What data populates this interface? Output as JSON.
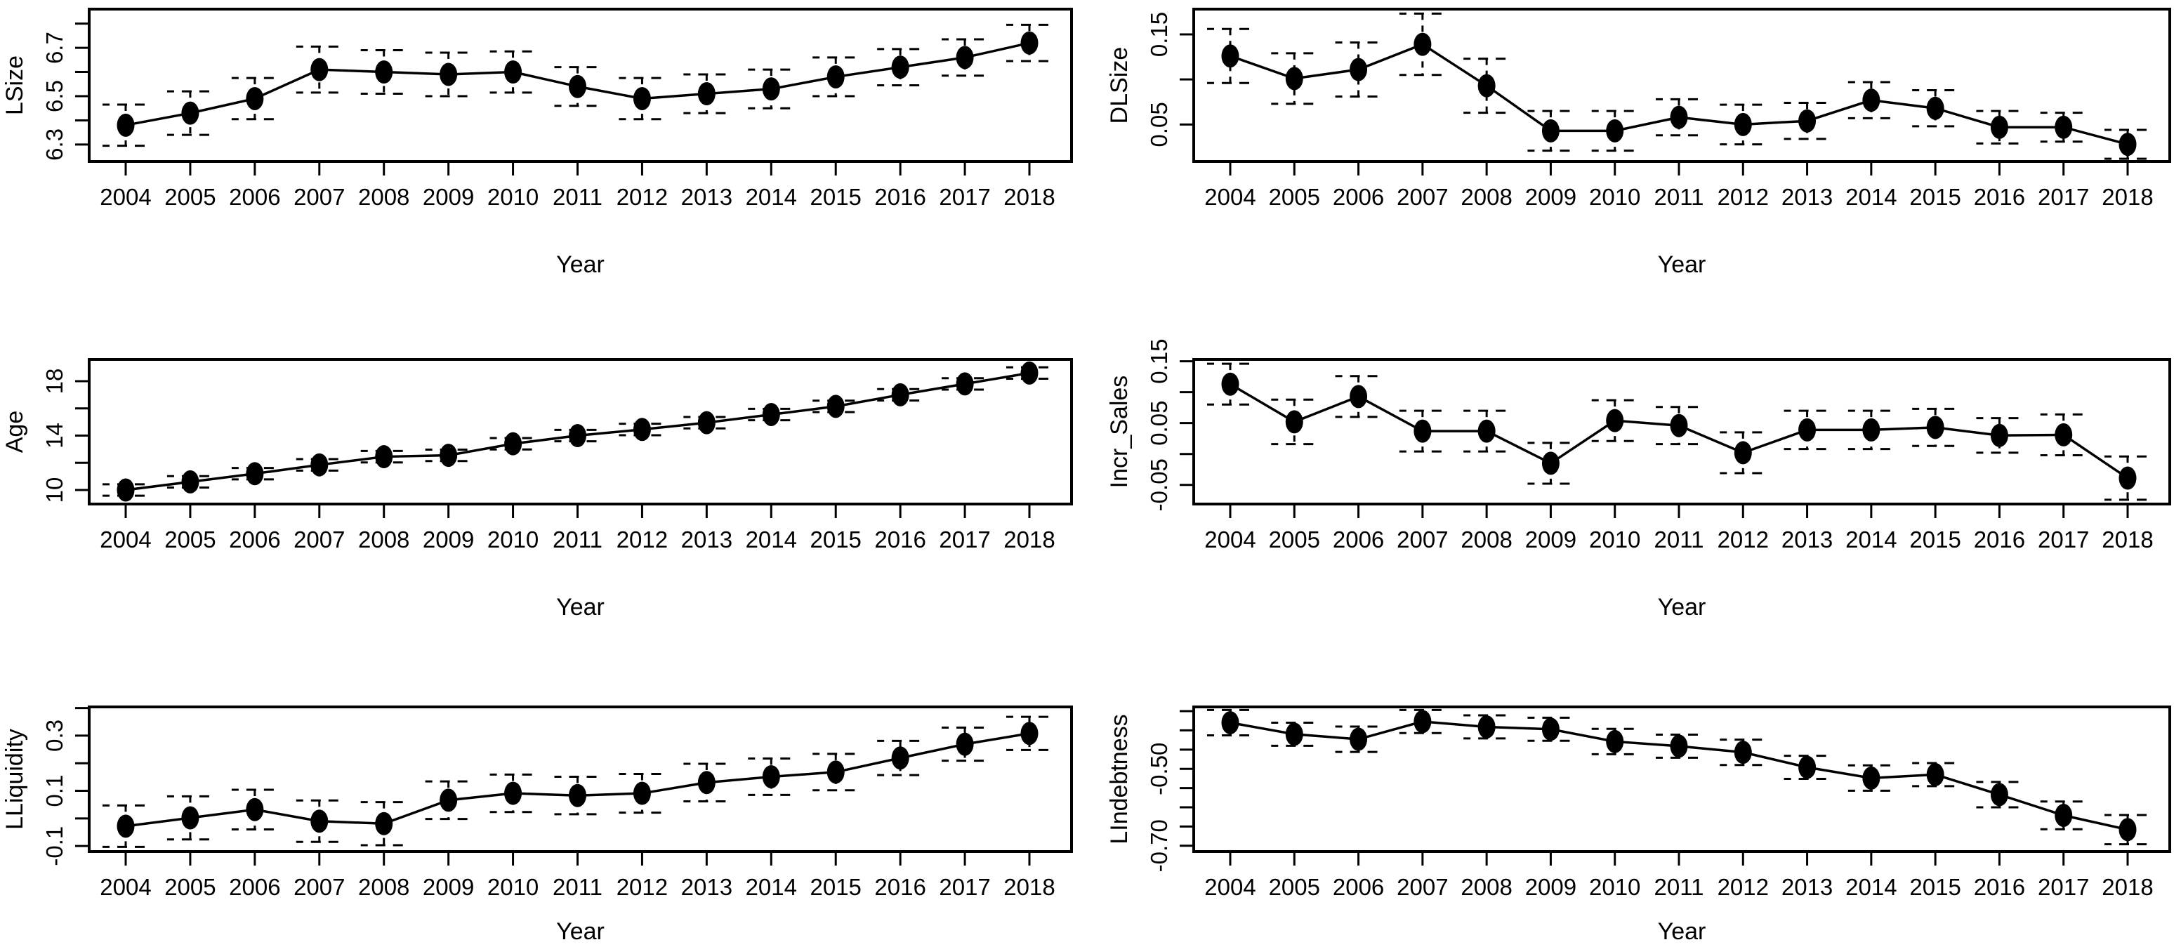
{
  "figure": {
    "background": "#ffffff",
    "axis_color": "#000000",
    "point_color": "#000000",
    "line_color": "#000000",
    "xlabel": "Year",
    "years": [
      2004,
      2005,
      2006,
      2007,
      2008,
      2009,
      2010,
      2011,
      2012,
      2013,
      2014,
      2015,
      2016,
      2017,
      2018
    ]
  },
  "chart_data": [
    {
      "type": "line",
      "title": "LSize",
      "ylabel": "LSize",
      "xlabel": "Year",
      "grid": false,
      "legend": null,
      "marker": "filled-circle",
      "error_style": "dashed-whiskers",
      "x": [
        2004,
        2005,
        2006,
        2007,
        2008,
        2009,
        2010,
        2011,
        2012,
        2013,
        2014,
        2015,
        2016,
        2017,
        2018
      ],
      "values": [
        6.38,
        6.43,
        6.49,
        6.61,
        6.6,
        6.59,
        6.6,
        6.54,
        6.49,
        6.51,
        6.53,
        6.58,
        6.62,
        6.66,
        6.72
      ],
      "ci": [
        0.085,
        0.09,
        0.085,
        0.095,
        0.09,
        0.09,
        0.085,
        0.08,
        0.085,
        0.08,
        0.08,
        0.08,
        0.075,
        0.075,
        0.075
      ],
      "ylim": [
        6.23,
        6.86
      ],
      "yticks": [
        6.3,
        6.4,
        6.5,
        6.6,
        6.7,
        6.8
      ],
      "labeled_yticks": [
        {
          "v": 6.3,
          "label": "6.3"
        },
        {
          "v": 6.5,
          "label": "6.5"
        },
        {
          "v": 6.7,
          "label": "6.7"
        }
      ]
    },
    {
      "type": "line",
      "title": "DLSize",
      "ylabel": "DLSize",
      "xlabel": "Year",
      "grid": false,
      "legend": null,
      "marker": "filled-circle",
      "error_style": "dashed-whiskers",
      "x": [
        2004,
        2005,
        2006,
        2007,
        2008,
        2009,
        2010,
        2011,
        2012,
        2013,
        2014,
        2015,
        2016,
        2017,
        2018
      ],
      "values": [
        0.126,
        0.101,
        0.111,
        0.139,
        0.093,
        0.043,
        0.043,
        0.058,
        0.05,
        0.054,
        0.077,
        0.068,
        0.047,
        0.047,
        0.028
      ],
      "ci": [
        0.03,
        0.028,
        0.03,
        0.034,
        0.03,
        0.022,
        0.022,
        0.02,
        0.022,
        0.02,
        0.02,
        0.02,
        0.018,
        0.016,
        0.016
      ],
      "ylim": [
        0.009,
        0.178
      ],
      "yticks": [
        0.05,
        0.1,
        0.15
      ],
      "labeled_yticks": [
        {
          "v": 0.05,
          "label": "0.05"
        },
        {
          "v": 0.15,
          "label": "0.15"
        }
      ]
    },
    {
      "type": "line",
      "title": "Age",
      "ylabel": "Age",
      "xlabel": "Year",
      "grid": false,
      "legend": null,
      "marker": "filled-circle",
      "error_style": "dashed-whiskers",
      "x": [
        2004,
        2005,
        2006,
        2007,
        2008,
        2009,
        2010,
        2011,
        2012,
        2013,
        2014,
        2015,
        2016,
        2017,
        2018
      ],
      "values": [
        10.0,
        10.6,
        11.2,
        11.85,
        12.45,
        12.55,
        13.4,
        14.0,
        14.45,
        14.95,
        15.55,
        16.15,
        17.0,
        17.8,
        18.6
      ],
      "ci": [
        0.42,
        0.42,
        0.42,
        0.42,
        0.42,
        0.42,
        0.42,
        0.42,
        0.42,
        0.42,
        0.42,
        0.42,
        0.42,
        0.42,
        0.42
      ],
      "ylim": [
        8.97,
        19.6
      ],
      "yticks": [
        10,
        12,
        14,
        16,
        18
      ],
      "labeled_yticks": [
        {
          "v": 10,
          "label": "10"
        },
        {
          "v": 14,
          "label": "14"
        },
        {
          "v": 18,
          "label": "18"
        }
      ]
    },
    {
      "type": "line",
      "title": "Incr_Sales",
      "ylabel": "Incr_Sales",
      "xlabel": "Year",
      "grid": false,
      "legend": null,
      "marker": "filled-circle",
      "error_style": "dashed-whiskers",
      "x": [
        2004,
        2005,
        2006,
        2007,
        2008,
        2009,
        2010,
        2011,
        2012,
        2013,
        2014,
        2015,
        2016,
        2017,
        2018
      ],
      "values": [
        0.113,
        0.052,
        0.093,
        0.037,
        0.037,
        -0.015,
        0.054,
        0.046,
        0.002,
        0.039,
        0.039,
        0.043,
        0.03,
        0.031,
        -0.039
      ],
      "ci": [
        0.033,
        0.036,
        0.033,
        0.033,
        0.033,
        0.033,
        0.033,
        0.03,
        0.033,
        0.031,
        0.031,
        0.03,
        0.028,
        0.033,
        0.035
      ],
      "ylim": [
        -0.081,
        0.153
      ],
      "yticks": [
        -0.05,
        0.0,
        0.05,
        0.1,
        0.15
      ],
      "labeled_yticks": [
        {
          "v": -0.05,
          "label": "-0.05"
        },
        {
          "v": 0.05,
          "label": "0.05"
        },
        {
          "v": 0.15,
          "label": "0.15"
        }
      ]
    },
    {
      "type": "line",
      "title": "LLiquidity",
      "ylabel": "LLiquidity",
      "xlabel": "Year",
      "grid": false,
      "legend": null,
      "marker": "filled-circle",
      "error_style": "dashed-whiskers",
      "x": [
        2004,
        2005,
        2006,
        2007,
        2008,
        2009,
        2010,
        2011,
        2012,
        2013,
        2014,
        2015,
        2016,
        2017,
        2018
      ],
      "values": [
        -0.028,
        0.002,
        0.032,
        -0.01,
        -0.019,
        0.066,
        0.091,
        0.083,
        0.091,
        0.13,
        0.151,
        0.168,
        0.219,
        0.269,
        0.308
      ],
      "ci": [
        0.075,
        0.078,
        0.072,
        0.075,
        0.078,
        0.068,
        0.068,
        0.068,
        0.07,
        0.068,
        0.066,
        0.066,
        0.062,
        0.06,
        0.06
      ],
      "ylim": [
        -0.12,
        0.404
      ],
      "yticks": [
        -0.1,
        0.0,
        0.1,
        0.2,
        0.3,
        0.4
      ],
      "labeled_yticks": [
        {
          "v": -0.1,
          "label": "-0.1"
        },
        {
          "v": 0.1,
          "label": "0.1"
        },
        {
          "v": 0.3,
          "label": "0.3"
        }
      ]
    },
    {
      "type": "line",
      "title": "LIndebtness",
      "ylabel": "LIndebtness",
      "xlabel": "Year",
      "grid": false,
      "legend": null,
      "marker": "filled-circle",
      "error_style": "dashed-whiskers",
      "x": [
        2004,
        2005,
        2006,
        2007,
        2008,
        2009,
        2010,
        2011,
        2012,
        2013,
        2014,
        2015,
        2016,
        2017,
        2018
      ],
      "values": [
        -0.38,
        -0.41,
        -0.423,
        -0.377,
        -0.391,
        -0.397,
        -0.429,
        -0.441,
        -0.457,
        -0.496,
        -0.524,
        -0.515,
        -0.567,
        -0.621,
        -0.658
      ],
      "ci": [
        0.033,
        0.03,
        0.033,
        0.03,
        0.03,
        0.03,
        0.033,
        0.03,
        0.033,
        0.03,
        0.033,
        0.03,
        0.033,
        0.036,
        0.038
      ],
      "ylim": [
        -0.715,
        -0.339
      ],
      "yticks": [
        -0.7,
        -0.65,
        -0.6,
        -0.55,
        -0.5,
        -0.45,
        -0.4,
        -0.35
      ],
      "labeled_yticks": [
        {
          "v": -0.5,
          "label": "-0.50"
        },
        {
          "v": -0.7,
          "label": "-0.70"
        }
      ]
    }
  ]
}
